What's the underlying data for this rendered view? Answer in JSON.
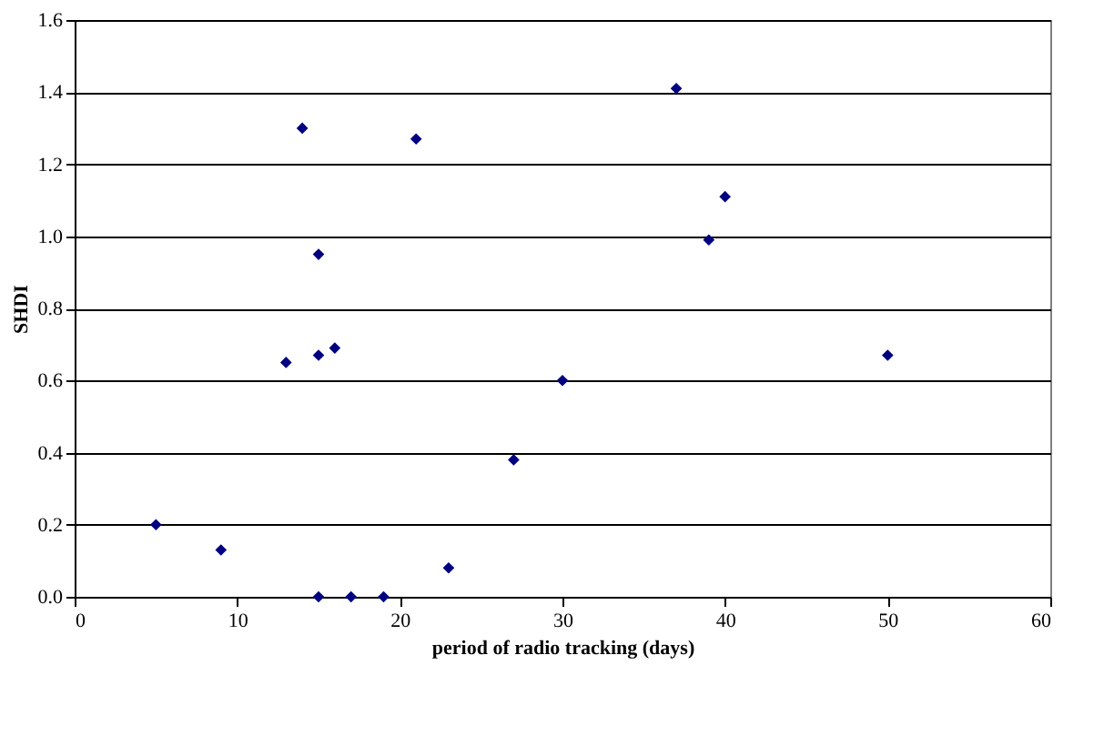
{
  "chart_data": {
    "type": "scatter",
    "xlabel": "period of radio tracking (days)",
    "ylabel": "SHDI",
    "x": [
      5,
      9,
      13,
      14,
      15,
      15,
      16,
      15,
      17,
      19,
      21,
      23,
      27,
      30,
      37,
      39,
      40,
      50
    ],
    "series": [
      {
        "color": "#000080",
        "values": [
          0.2,
          0.13,
          0.65,
          1.3,
          0.95,
          0.67,
          0.69,
          0,
          0,
          0,
          1.27,
          0.08,
          0.38,
          0.6,
          1.41,
          0.99,
          1.11,
          0.67
        ]
      }
    ],
    "xlim": [
      0,
      60
    ],
    "xticks": [
      0,
      10,
      20,
      30,
      40,
      50,
      60
    ],
    "ylim": [
      0,
      1.6
    ],
    "yticks": [
      {
        "value": 0,
        "label": "0.0"
      },
      {
        "value": 0.2,
        "label": "0.2"
      },
      {
        "value": 0.4,
        "label": "0.4"
      },
      {
        "value": 0.6,
        "label": "0.6"
      },
      {
        "value": 0.8,
        "label": "0.8"
      },
      {
        "value": 1,
        "label": "1.0"
      },
      {
        "value": 1.2,
        "label": "1.2"
      },
      {
        "value": 1.4,
        "label": "1.4"
      },
      {
        "value": 1.6,
        "label": "1.6"
      }
    ],
    "grid": "y",
    "marker": "diamond",
    "legend": false
  }
}
